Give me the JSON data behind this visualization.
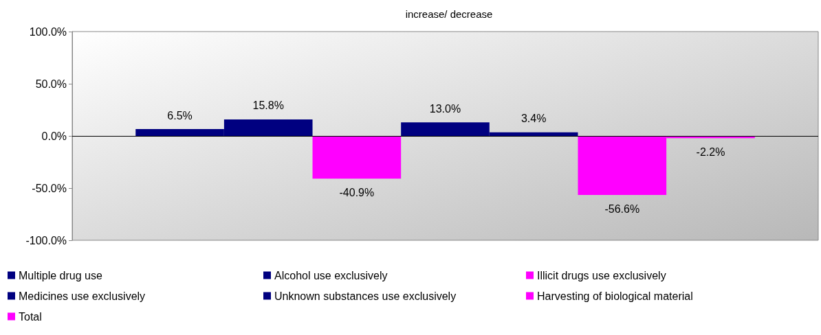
{
  "chart_data": {
    "type": "bar",
    "title": "increase/ decrease",
    "categories": [
      null
    ],
    "series": [
      {
        "name": "Multiple drug use",
        "color": "#000080",
        "values": [
          6.5
        ],
        "value_labels": [
          "6.5%"
        ]
      },
      {
        "name": "Alcohol use exclusively",
        "color": "#000080",
        "values": [
          15.8
        ],
        "value_labels": [
          "15.8%"
        ]
      },
      {
        "name": "Illicit drugs use exclusively",
        "color": "#ff00ff",
        "values": [
          -40.9
        ],
        "value_labels": [
          "-40.9%"
        ]
      },
      {
        "name": "Medicines use exclusively",
        "color": "#000080",
        "values": [
          13.0
        ],
        "value_labels": [
          "13.0%"
        ]
      },
      {
        "name": "Unknown substances use exclusively",
        "color": "#000080",
        "values": [
          3.4
        ],
        "value_labels": [
          "3.4%"
        ]
      },
      {
        "name": "Harvesting of biological material",
        "color": "#ff00ff",
        "values": [
          -56.6
        ],
        "value_labels": [
          "-56.6%"
        ]
      },
      {
        "name": "Total",
        "color": "#ff00ff",
        "values": [
          -2.2
        ],
        "value_labels": [
          "-2.2%"
        ]
      }
    ],
    "ylim": [
      -100,
      100
    ],
    "yticks": [
      {
        "value": -100,
        "label": "-100.0%"
      },
      {
        "value": -50,
        "label": "-50.0%"
      },
      {
        "value": 0,
        "label": "0.0%"
      },
      {
        "value": 50,
        "label": "50.0%"
      },
      {
        "value": 100,
        "label": "100.0%"
      }
    ],
    "ref_lines": [
      {
        "axis": "y",
        "value": 0,
        "color": "#000000"
      }
    ],
    "grid": false,
    "legend": "bottom"
  }
}
